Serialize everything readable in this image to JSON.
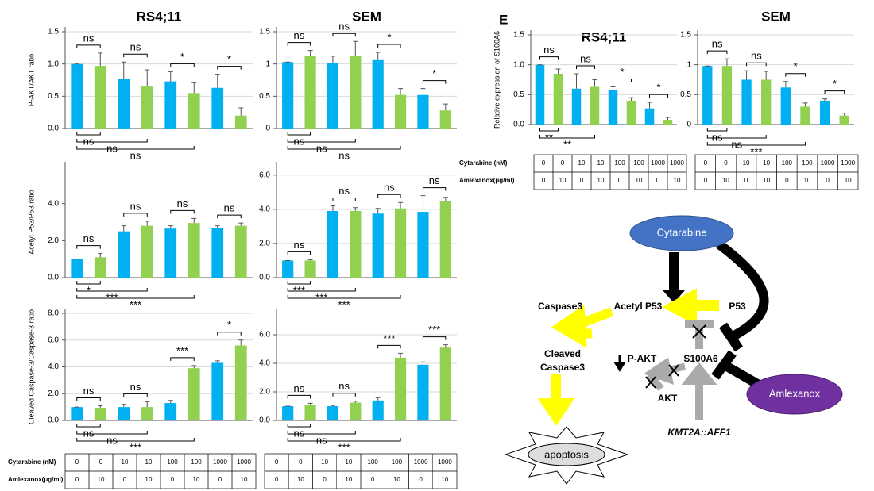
{
  "chart_data": [
    {
      "type": "bar",
      "title": "RS4;11",
      "ylabel": "P-AKT/AKT ratio",
      "ylim": [
        0,
        1.5
      ],
      "yticks": [
        {
          "value": 0,
          "label": "0.0"
        },
        0.5,
        {
          "value": 1,
          "label": "1.0"
        },
        1.5
      ],
      "grid": true,
      "series": [
        {
          "color": "#00b0f0",
          "values": [
            1.0,
            0.77,
            0.73,
            0.63
          ],
          "errors": [
            0,
            0.26,
            0.15,
            0.21
          ]
        },
        {
          "color": "#92d050",
          "values": [
            0.97,
            0.65,
            0.55,
            0.2
          ],
          "errors": [
            0.2,
            0.26,
            0.16,
            0.12
          ]
        }
      ],
      "annotations_top": [
        "ns",
        "ns",
        "*",
        "*"
      ],
      "annotations_bottom": [
        "ns",
        "ns",
        "ns"
      ]
    },
    {
      "type": "bar",
      "title": "SEM",
      "ylim": [
        0,
        1.5
      ],
      "yticks": [
        0,
        0.5,
        1,
        1.5
      ],
      "grid": true,
      "series": [
        {
          "color": "#00b0f0",
          "values": [
            1.03,
            1.02,
            1.06,
            0.52
          ],
          "errors": [
            0,
            0.1,
            0.12,
            0.1
          ]
        },
        {
          "color": "#92d050",
          "values": [
            1.13,
            1.13,
            0.52,
            0.28
          ],
          "errors": [
            0.08,
            0.22,
            0.1,
            0.1
          ]
        }
      ],
      "annotations_top": [
        "ns",
        "ns",
        "*",
        "*"
      ],
      "annotations_bottom": [
        "ns",
        "ns",
        "ns"
      ]
    },
    {
      "type": "bar",
      "ylabel": "Acetyl P53/P53 ratio",
      "ylim": [
        0,
        6
      ],
      "yticks": [
        {
          "value": 0,
          "label": "0.0"
        },
        {
          "value": 2,
          "label": "2.0"
        },
        {
          "value": 4,
          "label": "4.0"
        }
      ],
      "grid": false,
      "series": [
        {
          "color": "#00b0f0",
          "values": [
            1.0,
            2.5,
            2.65,
            2.7
          ],
          "errors": [
            0,
            0.3,
            0.15,
            0.1
          ]
        },
        {
          "color": "#92d050",
          "values": [
            1.1,
            2.8,
            2.95,
            2.8
          ],
          "errors": [
            0.2,
            0.25,
            0.25,
            0.15
          ]
        }
      ],
      "annotations_top": [
        "ns",
        "ns",
        "ns",
        "ns"
      ],
      "annotations_bottom": [
        "*",
        "***",
        "***"
      ]
    },
    {
      "type": "bar",
      "ylim": [
        0,
        6.5
      ],
      "yticks": [
        {
          "value": 0,
          "label": "0.0"
        },
        {
          "value": 2,
          "label": "2.0"
        },
        {
          "value": 4,
          "label": "4.0"
        },
        {
          "value": 6,
          "label": "6.0"
        }
      ],
      "grid": true,
      "series": [
        {
          "color": "#00b0f0",
          "values": [
            1.0,
            3.9,
            3.75,
            3.85
          ],
          "errors": [
            0,
            0.3,
            0.3,
            0.95
          ]
        },
        {
          "color": "#92d050",
          "values": [
            1.0,
            3.9,
            4.05,
            4.5
          ],
          "errors": [
            0.05,
            0.2,
            0.35,
            0.2
          ]
        }
      ],
      "annotations_top": [
        "ns",
        "ns",
        "ns",
        "ns"
      ],
      "annotations_bottom": [
        "***",
        "***",
        "***"
      ]
    },
    {
      "type": "bar",
      "ylabel": "Cleaved Caspase-3/Caspase-3 ratio",
      "ylim": [
        0,
        8
      ],
      "yticks": [
        {
          "value": 0,
          "label": "0.0"
        },
        {
          "value": 2,
          "label": "2.0"
        },
        {
          "value": 4,
          "label": "4.0"
        },
        {
          "value": 6,
          "label": "6.0"
        },
        {
          "value": 8,
          "label": "8.0"
        }
      ],
      "grid": true,
      "series": [
        {
          "color": "#00b0f0",
          "values": [
            1.0,
            1.0,
            1.3,
            4.3
          ],
          "errors": [
            0,
            0.2,
            0.2,
            0.15
          ]
        },
        {
          "color": "#92d050",
          "values": [
            0.95,
            1.0,
            3.9,
            5.6
          ],
          "errors": [
            0.15,
            0.4,
            0.2,
            0.4
          ]
        }
      ],
      "annotations_top": [
        "ns",
        "ns",
        "***",
        "*"
      ],
      "annotations_bottom": [
        "ns",
        "ns",
        "***"
      ]
    },
    {
      "type": "bar",
      "ylim": [
        0,
        7.5
      ],
      "yticks": [
        {
          "value": 0,
          "label": "0.0"
        },
        {
          "value": 2,
          "label": "2.0"
        },
        {
          "value": 4,
          "label": "4.0"
        },
        {
          "value": 6,
          "label": "6.0"
        }
      ],
      "grid": true,
      "series": [
        {
          "color": "#00b0f0",
          "values": [
            1.0,
            1.0,
            1.4,
            3.9
          ],
          "errors": [
            0,
            0.05,
            0.2,
            0.2
          ]
        },
        {
          "color": "#92d050",
          "values": [
            1.1,
            1.25,
            4.4,
            5.1
          ],
          "errors": [
            0.1,
            0.1,
            0.3,
            0.2
          ]
        }
      ],
      "annotations_top": [
        "ns",
        "ns",
        "***",
        "***"
      ],
      "annotations_bottom": [
        "ns",
        "ns",
        "***"
      ]
    },
    {
      "type": "bar",
      "label": "E",
      "title": "RS4;11",
      "ylabel": "Relative expression of S100A6",
      "ylim": [
        0,
        1.5
      ],
      "yticks": [
        {
          "value": 0,
          "label": "0.0"
        },
        0.5,
        {
          "value": 1,
          "label": "1.0"
        },
        1.5
      ],
      "grid": true,
      "series": [
        {
          "color": "#00b0f0",
          "values": [
            1.0,
            0.6,
            0.58,
            0.27
          ],
          "errors": [
            0,
            0.25,
            0.05,
            0.1
          ]
        },
        {
          "color": "#92d050",
          "values": [
            0.85,
            0.63,
            0.4,
            0.08
          ],
          "errors": [
            0.08,
            0.12,
            0.05,
            0.04
          ]
        }
      ],
      "annotations_top": [
        "ns",
        "ns",
        "*",
        "*"
      ],
      "annotations_bottom": [
        "**",
        "**"
      ]
    },
    {
      "type": "bar",
      "title": "SEM",
      "ylim": [
        0,
        1.5
      ],
      "yticks": [
        0,
        0.5,
        1,
        1.5
      ],
      "grid": true,
      "series": [
        {
          "color": "#00b0f0",
          "values": [
            0.98,
            0.75,
            0.62,
            0.4
          ],
          "errors": [
            0,
            0.15,
            0.1,
            0.03
          ]
        },
        {
          "color": "#92d050",
          "values": [
            0.98,
            0.75,
            0.3,
            0.15
          ],
          "errors": [
            0.12,
            0.14,
            0.06,
            0.04
          ]
        }
      ],
      "annotations_top": [
        "ns",
        "ns",
        "*",
        "*"
      ],
      "annotations_bottom": [
        "ns",
        "ns",
        "***"
      ]
    }
  ],
  "tables": [
    {
      "rows": [
        [
          "Cytarabine (nM)",
          0,
          0,
          10,
          10,
          100,
          100,
          1000,
          1000
        ],
        [
          "Amlexanox(μg/ml)",
          0,
          10,
          0,
          10,
          0,
          10,
          0,
          10
        ]
      ]
    },
    {
      "rows": [
        [
          0,
          0,
          10,
          10,
          100,
          100,
          1000,
          1000
        ],
        [
          0,
          10,
          0,
          10,
          0,
          10,
          0,
          10
        ]
      ]
    },
    {
      "rows": [
        [
          "Cytarabine (nM)",
          0,
          0,
          10,
          10,
          100,
          100,
          1000,
          1000
        ],
        [
          "Amlexanox(μg/ml)",
          0,
          10,
          0,
          10,
          0,
          10,
          0,
          10
        ]
      ]
    },
    {
      "rows": [
        [
          0,
          0,
          10,
          10,
          100,
          100,
          1000,
          1000
        ],
        [
          0,
          10,
          0,
          10,
          0,
          10,
          0,
          10
        ]
      ]
    }
  ],
  "diagram": {
    "cytarabine": "Cytarabine",
    "amlexanox": "Amlexanox",
    "caspase3": "Caspase3",
    "acetyl_p53": "Acetyl P53",
    "p53": "P53",
    "cleaved": [
      "Cleaved",
      "Caspase3"
    ],
    "p_akt": "P-AKT",
    "s100a6": "S100A6",
    "akt": "AKT",
    "kmt2a": "KMT2A::AFF1",
    "apoptosis": "apoptosis"
  }
}
